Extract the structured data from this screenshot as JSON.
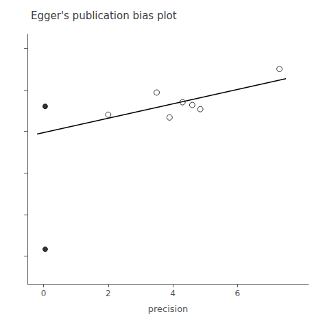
{
  "chart_data": {
    "type": "scatter",
    "title": "Egger's publication bias plot",
    "xlabel": "precision",
    "series": [
      {
        "type": "scatter",
        "marker": "circle-open",
        "color": "#000000",
        "x": [
          2.0,
          3.5,
          3.9,
          4.3,
          4.6,
          4.85,
          7.3
        ],
        "values": [
          4.2,
          5.8,
          4.0,
          5.1,
          4.9,
          4.6,
          7.5
        ]
      },
      {
        "type": "scatter",
        "marker": "circle",
        "color": "#000000",
        "x": [
          0.05,
          0.05
        ],
        "values": [
          4.8,
          -5.5
        ]
      },
      {
        "type": "line",
        "line_style": "solid",
        "color": "#000000",
        "x": [
          -0.2,
          7.5
        ],
        "values": [
          2.8,
          6.8
        ]
      }
    ],
    "xlim": [
      -0.5,
      8.2
    ],
    "xticks": [
      0,
      2,
      4,
      6
    ],
    "ylim": [
      -8.0,
      10.0
    ],
    "yticks": [
      -6.0,
      -3.0,
      0.0,
      3.0,
      6.0,
      9.0
    ],
    "tick_labels": "x",
    "grid": false
  }
}
